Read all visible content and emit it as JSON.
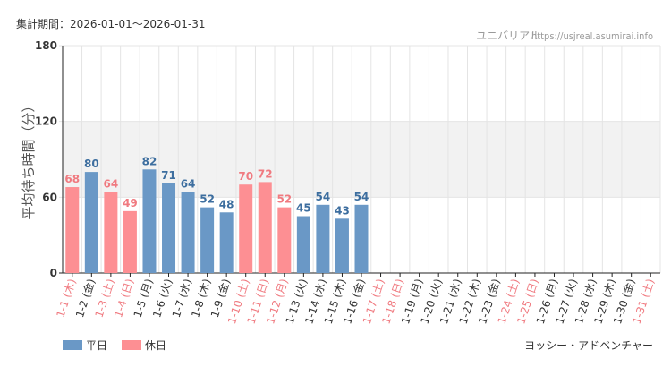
{
  "header": {
    "period": "集計期間：2026-01-01～2026-01-31",
    "park_name": "ユニバリアル",
    "site_url": "https://usjreal.asumirai.info"
  },
  "attraction": "ヨッシー・アドベンチャー",
  "colors": {
    "weekday": "#6a98c6",
    "holiday": "#fd8f93",
    "weekday_text": "#3d6e9f",
    "holiday_text": "#f07a80",
    "band": "#f2f2f2",
    "grid": "#e4e4e4",
    "axis": "#222222"
  },
  "chart_data": {
    "type": "bar",
    "title": "",
    "xlabel": "",
    "ylabel": "平均待ち時間（分）",
    "ylim": [
      0,
      180
    ],
    "yticks": [
      0,
      60,
      120,
      180
    ],
    "shaded_band": [
      60,
      120
    ],
    "grid": true,
    "legend_position": "bottom-left",
    "categories": [
      "1-1 (木)",
      "1-2 (金)",
      "1-3 (土)",
      "1-4 (日)",
      "1-5 (月)",
      "1-6 (火)",
      "1-7 (水)",
      "1-8 (木)",
      "1-9 (金)",
      "1-10 (土)",
      "1-11 (日)",
      "1-12 (月)",
      "1-13 (火)",
      "1-14 (水)",
      "1-15 (木)",
      "1-16 (金)",
      "1-17 (土)",
      "1-18 (日)",
      "1-19 (月)",
      "1-20 (火)",
      "1-21 (水)",
      "1-22 (木)",
      "1-23 (金)",
      "1-24 (土)",
      "1-25 (日)",
      "1-26 (月)",
      "1-27 (火)",
      "1-28 (水)",
      "1-29 (木)",
      "1-30 (金)",
      "1-31 (土)"
    ],
    "day_type": [
      "holiday",
      "weekday",
      "holiday",
      "holiday",
      "weekday",
      "weekday",
      "weekday",
      "weekday",
      "weekday",
      "holiday",
      "holiday",
      "holiday",
      "weekday",
      "weekday",
      "weekday",
      "weekday",
      "holiday",
      "holiday",
      "weekday",
      "weekday",
      "weekday",
      "weekday",
      "weekday",
      "holiday",
      "holiday",
      "weekday",
      "weekday",
      "weekday",
      "weekday",
      "weekday",
      "holiday"
    ],
    "values": [
      68,
      80,
      64,
      49,
      82,
      71,
      64,
      52,
      48,
      70,
      72,
      52,
      45,
      54,
      43,
      54,
      null,
      null,
      null,
      null,
      null,
      null,
      null,
      null,
      null,
      null,
      null,
      null,
      null,
      null,
      null
    ],
    "series": [
      {
        "name": "平日",
        "type": "weekday"
      },
      {
        "name": "休日",
        "type": "holiday"
      }
    ]
  }
}
